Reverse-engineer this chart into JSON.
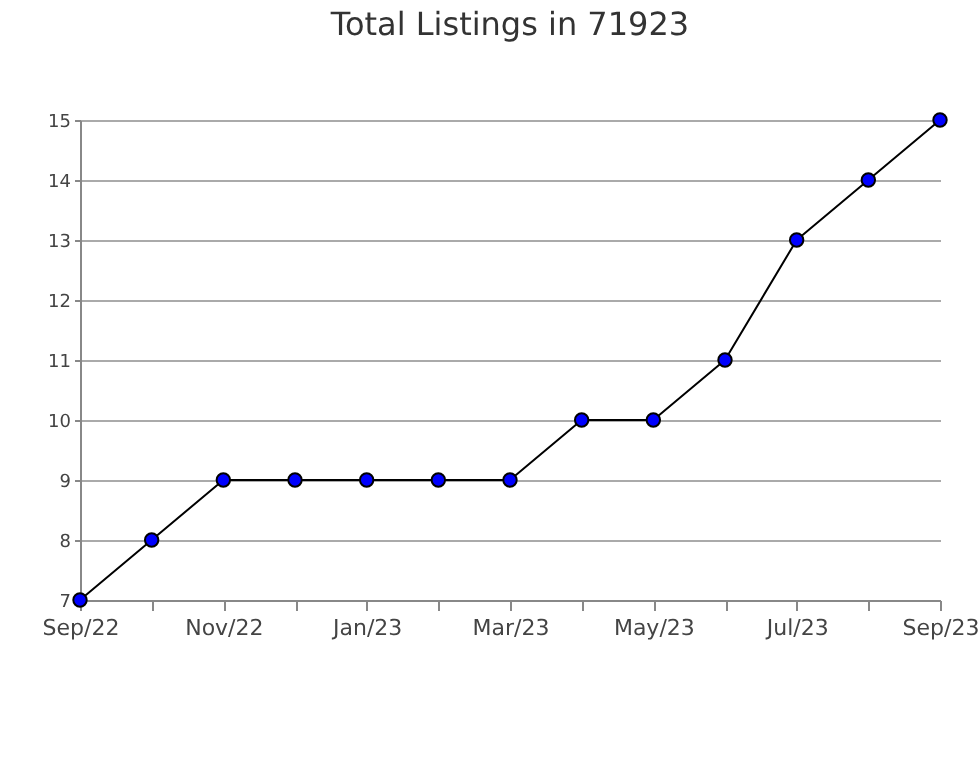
{
  "chart_data": {
    "type": "line",
    "title": "Total Listings in 71923",
    "categories": [
      "Sep/22",
      null,
      "Nov/22",
      null,
      "Jan/23",
      null,
      "Mar/23",
      null,
      "May/23",
      null,
      "Jul/23",
      null,
      "Sep/23"
    ],
    "series": [
      {
        "color": "#0000ff",
        "values": [
          7,
          8,
          9,
          9,
          9,
          9,
          9,
          10,
          10,
          11,
          13,
          14,
          15
        ]
      }
    ],
    "ylim": [
      7,
      15
    ],
    "yticks": [
      7,
      8,
      9,
      10,
      11,
      12,
      13,
      14,
      15
    ],
    "grid": "y",
    "marker": "circle",
    "line_style": "solid",
    "legend": false
  }
}
